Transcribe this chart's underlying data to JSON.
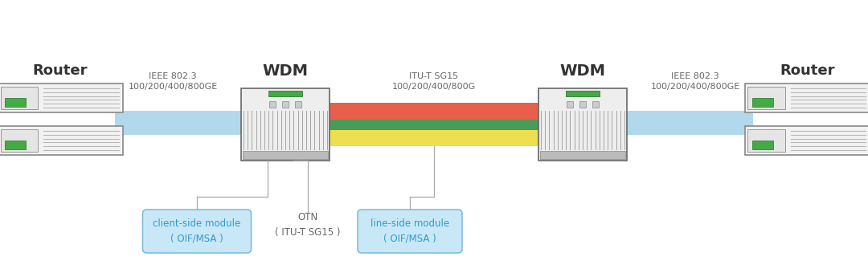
{
  "bg_color": "#ffffff",
  "router_label": "Router",
  "wdm_label": "WDM",
  "ieee_label1": "IEEE 802.3",
  "ieee_label2": "100/200/400/800GE",
  "itu_label1": "ITU-T SG15",
  "itu_label2": "100/200/400/800G",
  "client_box_text": "client-side module\n( OIF/MSA )",
  "otn_text": "OTN\n( ITU-T SG15 )",
  "line_box_text": "line-side module\n( OIF/MSA )",
  "blue_band_color": "#aad4ea",
  "red_band_color": "#e8604c",
  "green_band_color": "#4a9a5a",
  "yellow_band_color": "#eedf50",
  "box_fill": "#c8e8f8",
  "box_border": "#7ab8d8",
  "line_color": "#aaaaaa",
  "text_color": "#666666",
  "label_color": "#333333",
  "cyan_text": "#3399cc",
  "router_border": "#888888",
  "wdm_border": "#666666"
}
